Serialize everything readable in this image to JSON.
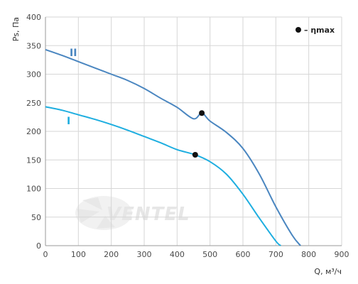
{
  "chart_data": {
    "type": "line",
    "title": "",
    "xlabel": "Q, м³/ч",
    "ylabel": "Ps, Па",
    "xlim": [
      0,
      900
    ],
    "ylim": [
      0,
      400
    ],
    "xticks": [
      0,
      100,
      200,
      300,
      400,
      500,
      600,
      700,
      800,
      900
    ],
    "yticks": [
      0,
      50,
      100,
      150,
      200,
      250,
      300,
      350,
      400
    ],
    "grid": true,
    "legend": {
      "position": "top-right",
      "marker_label": "– ηmax"
    },
    "series": [
      {
        "name": "II",
        "color": "#4a86c0",
        "x": [
          0,
          50,
          100,
          150,
          200,
          250,
          300,
          350,
          400,
          450,
          475,
          500,
          550,
          600,
          650,
          700,
          750,
          775
        ],
        "y": [
          343,
          333,
          322,
          311,
          300,
          289,
          275,
          258,
          242,
          222,
          232,
          218,
          198,
          170,
          125,
          68,
          18,
          0
        ],
        "max_efficiency_point": {
          "x": 475,
          "y": 232
        }
      },
      {
        "name": "I",
        "color": "#1eaee0",
        "x": [
          0,
          50,
          100,
          150,
          200,
          250,
          300,
          350,
          400,
          455,
          500,
          550,
          600,
          650,
          700,
          715
        ],
        "y": [
          243,
          237,
          229,
          221,
          212,
          202,
          191,
          180,
          168,
          159,
          147,
          125,
          90,
          48,
          8,
          0
        ],
        "max_efficiency_point": {
          "x": 455,
          "y": 159
        }
      }
    ],
    "watermark": "VENTEL"
  }
}
